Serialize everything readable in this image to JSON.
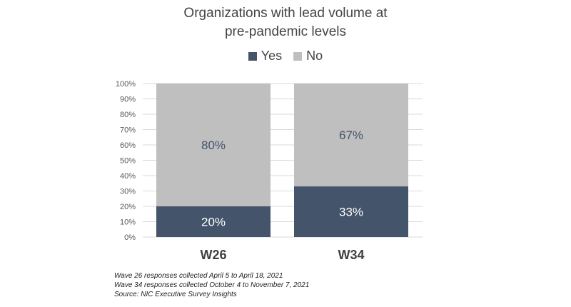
{
  "chart_data": {
    "type": "bar",
    "stacked": true,
    "title_lines": [
      "Organizations with lead volume at",
      "pre-pandemic levels"
    ],
    "categories": [
      "W26",
      "W34"
    ],
    "series": [
      {
        "name": "Yes",
        "values": [
          20,
          33
        ],
        "labels": [
          "20%",
          "33%"
        ],
        "color": "#44546a",
        "label_color": "#ffffff"
      },
      {
        "name": "No",
        "values": [
          80,
          67
        ],
        "labels": [
          "80%",
          "67%"
        ],
        "color": "#bfbfbf",
        "label_color": "#44546a"
      }
    ],
    "ylim": [
      0,
      100
    ],
    "yticks": [
      "0%",
      "10%",
      "20%",
      "30%",
      "40%",
      "50%",
      "60%",
      "70%",
      "80%",
      "90%",
      "100%"
    ],
    "grid": true,
    "legend_position": "top"
  },
  "notes": [
    "Wave 26 responses collected April 5 to April 18, 2021",
    "Wave 34 responses collected October 4 to November 7, 2021",
    "Source: NIC Executive Survey Insights"
  ],
  "colors": {
    "text": "#444444",
    "grid": "#d9d9d9",
    "tick_text": "#595959"
  }
}
